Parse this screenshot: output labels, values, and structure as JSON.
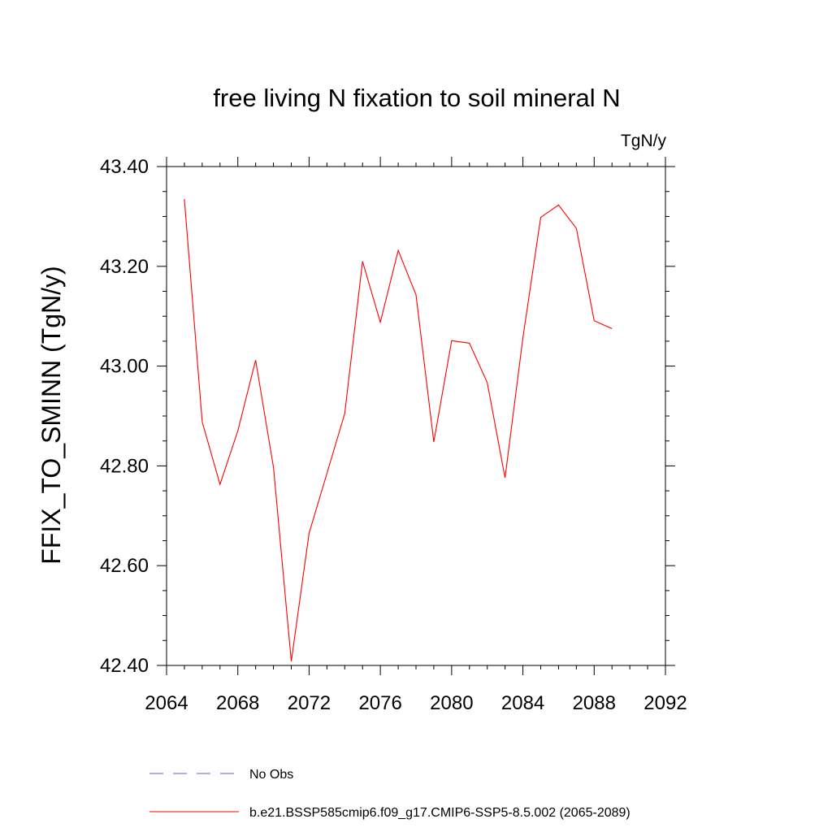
{
  "chart_data": {
    "type": "line",
    "title": "free living N fixation to soil mineral N",
    "units": "TgN/y",
    "xlabel": "",
    "ylabel": "FFIX_TO_SMINN  (TgN/y)",
    "xlim": [
      2064,
      2092
    ],
    "ylim": [
      42.4,
      43.4
    ],
    "xticks": [
      2064,
      2068,
      2072,
      2076,
      2080,
      2084,
      2088,
      2092
    ],
    "xtick_labels": [
      "2064",
      "2068",
      "2072",
      "2076",
      "2080",
      "2084",
      "2088",
      "2092"
    ],
    "yticks": [
      42.4,
      42.6,
      42.8,
      43.0,
      43.2,
      43.4
    ],
    "ytick_labels": [
      "42.40",
      "42.60",
      "42.80",
      "43.00",
      "43.20",
      "43.40"
    ],
    "grid": false,
    "legend_position": "bottom",
    "series": [
      {
        "name": "b.e21.BSSP585cmip6.f09_g17.CMIP6-SSP5-8.5.002 (2065-2089)",
        "color": "#ff0000",
        "style": "solid",
        "x": [
          2065,
          2066,
          2067,
          2068,
          2069,
          2070,
          2071,
          2072,
          2073,
          2074,
          2075,
          2076,
          2077,
          2078,
          2079,
          2080,
          2081,
          2082,
          2083,
          2084,
          2085,
          2086,
          2087,
          2088,
          2089
        ],
        "y": [
          43.335,
          42.888,
          42.763,
          42.87,
          43.012,
          42.797,
          42.408,
          42.665,
          42.785,
          42.905,
          43.21,
          43.088,
          43.232,
          43.143,
          42.848,
          43.051,
          43.046,
          42.967,
          42.776,
          43.057,
          43.298,
          43.323,
          43.276,
          43.091,
          43.075
        ]
      }
    ],
    "legend": [
      {
        "label": "No Obs",
        "color": "#6a5acd",
        "style": "dashed"
      },
      {
        "label": "b.e21.BSSP585cmip6.f09_g17.CMIP6-SSP5-8.5.002 (2065-2089)",
        "color": "#ff0000",
        "style": "solid"
      }
    ]
  }
}
